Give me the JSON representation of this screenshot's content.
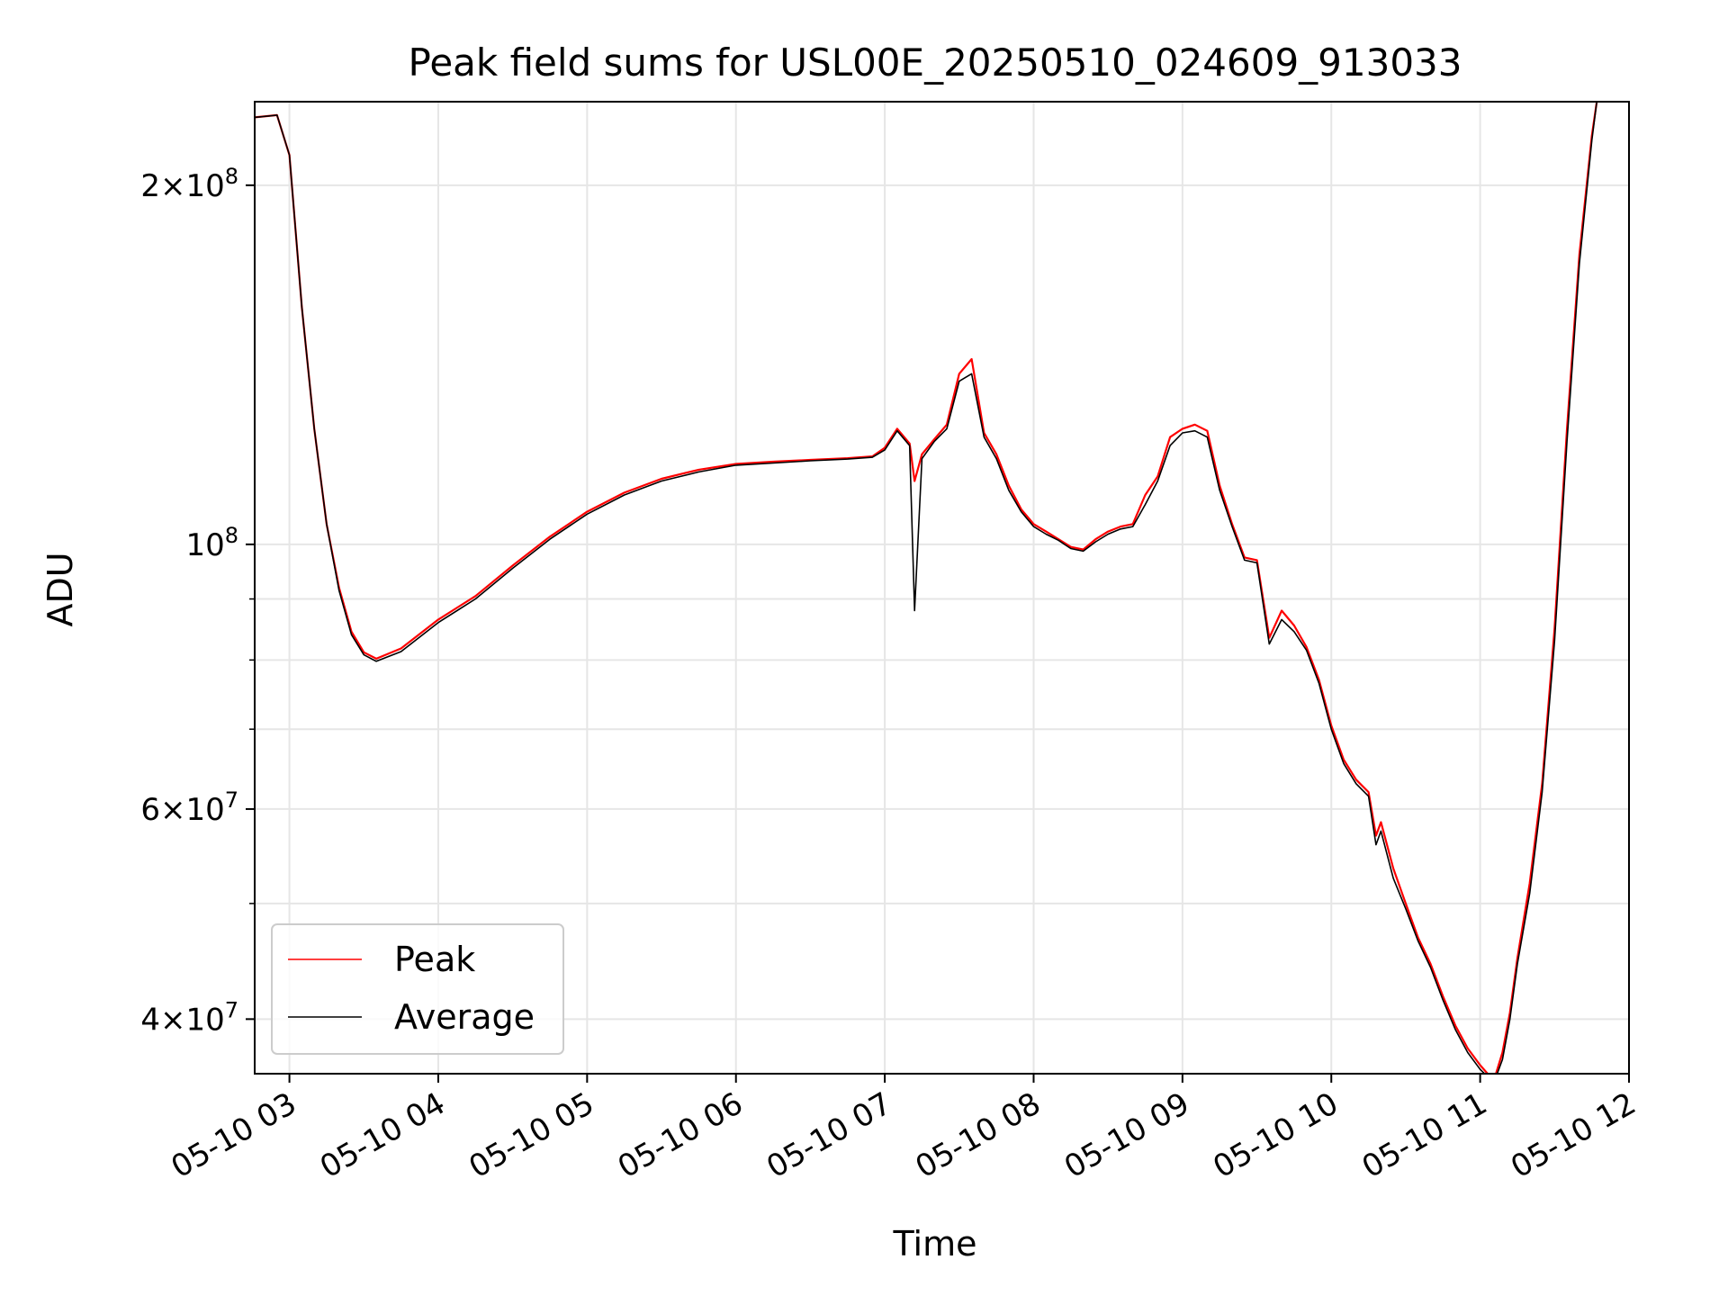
{
  "chart_data": {
    "type": "line",
    "title": "Peak field sums for USL00E_20250510_024609_913033",
    "xlabel": "Time",
    "ylabel": "ADU",
    "yscale": "log",
    "xlim": [
      "05-10 02:46",
      "05-10 12:00"
    ],
    "ylim": [
      36000000,
      235000000
    ],
    "grid": true,
    "legend_position": "lower-left",
    "x_ticks": [
      "05-10 03",
      "05-10 04",
      "05-10 05",
      "05-10 06",
      "05-10 07",
      "05-10 08",
      "05-10 09",
      "05-10 10",
      "05-10 11",
      "05-10 12"
    ],
    "y_major_ticks": [
      {
        "value": 40000000,
        "base": "4",
        "exp": "7"
      },
      {
        "value": 60000000,
        "base": "6",
        "exp": "7"
      },
      {
        "value": 100000000,
        "base": "",
        "exp": "8"
      },
      {
        "value": 200000000,
        "base": "2",
        "exp": "8"
      }
    ],
    "y_minor_ticks": [
      50000000,
      70000000,
      80000000,
      90000000
    ],
    "series": [
      {
        "name": "Peak",
        "color": "#ff0000",
        "x": [
          "05-10 02:46",
          "05-10 02:55",
          "05-10 03:00",
          "05-10 03:05",
          "05-10 03:10",
          "05-10 03:15",
          "05-10 03:20",
          "05-10 03:25",
          "05-10 03:30",
          "05-10 03:35",
          "05-10 03:45",
          "05-10 04:00",
          "05-10 04:15",
          "05-10 04:30",
          "05-10 04:45",
          "05-10 05:00",
          "05-10 05:15",
          "05-10 05:30",
          "05-10 05:45",
          "05-10 06:00",
          "05-10 06:15",
          "05-10 06:30",
          "05-10 06:45",
          "05-10 06:55",
          "05-10 07:00",
          "05-10 07:05",
          "05-10 07:10",
          "05-10 07:12",
          "05-10 07:15",
          "05-10 07:20",
          "05-10 07:25",
          "05-10 07:30",
          "05-10 07:35",
          "05-10 07:40",
          "05-10 07:45",
          "05-10 07:50",
          "05-10 07:55",
          "05-10 08:00",
          "05-10 08:05",
          "05-10 08:10",
          "05-10 08:15",
          "05-10 08:20",
          "05-10 08:25",
          "05-10 08:30",
          "05-10 08:35",
          "05-10 08:40",
          "05-10 08:45",
          "05-10 08:50",
          "05-10 08:55",
          "05-10 09:00",
          "05-10 09:05",
          "05-10 09:10",
          "05-10 09:15",
          "05-10 09:20",
          "05-10 09:25",
          "05-10 09:30",
          "05-10 09:35",
          "05-10 09:40",
          "05-10 09:45",
          "05-10 09:50",
          "05-10 09:55",
          "05-10 10:00",
          "05-10 10:05",
          "05-10 10:10",
          "05-10 10:15",
          "05-10 10:18",
          "05-10 10:20",
          "05-10 10:25",
          "05-10 10:30",
          "05-10 10:35",
          "05-10 10:40",
          "05-10 10:45",
          "05-10 10:50",
          "05-10 10:55",
          "05-10 11:00",
          "05-10 11:03",
          "05-10 11:06",
          "05-10 11:09",
          "05-10 11:12",
          "05-10 11:15",
          "05-10 11:20",
          "05-10 11:25",
          "05-10 11:30",
          "05-10 11:35",
          "05-10 11:40",
          "05-10 11:45",
          "05-10 11:47"
        ],
        "values": [
          228000000,
          229000000,
          212000000,
          158000000,
          125000000,
          104000000,
          92000000,
          84500000,
          81200000,
          80200000,
          81800000,
          86500000,
          90500000,
          96000000,
          101500000,
          106500000,
          110500000,
          113500000,
          115500000,
          116800000,
          117300000,
          117700000,
          118100000,
          118500000,
          120500000,
          125000000,
          121500000,
          113000000,
          119000000,
          122500000,
          126000000,
          139000000,
          143000000,
          124000000,
          119000000,
          112000000,
          107000000,
          104000000,
          102500000,
          101000000,
          99500000,
          99000000,
          101000000,
          102500000,
          103500000,
          104000000,
          110000000,
          114000000,
          123000000,
          125000000,
          126000000,
          124500000,
          112000000,
          104000000,
          97500000,
          97000000,
          83500000,
          88000000,
          85500000,
          82000000,
          77000000,
          70500000,
          66000000,
          63500000,
          62000000,
          57000000,
          58500000,
          53500000,
          50000000,
          46800000,
          44500000,
          41800000,
          39500000,
          37800000,
          36600000,
          36000000,
          35800000,
          37500000,
          40500000,
          45000000,
          52000000,
          63000000,
          85000000,
          125000000,
          175000000,
          220000000,
          235000000
        ]
      },
      {
        "name": "Average",
        "color": "#000000",
        "x": [
          "05-10 02:46",
          "05-10 02:55",
          "05-10 03:00",
          "05-10 03:05",
          "05-10 03:10",
          "05-10 03:15",
          "05-10 03:20",
          "05-10 03:25",
          "05-10 03:30",
          "05-10 03:35",
          "05-10 03:45",
          "05-10 04:00",
          "05-10 04:15",
          "05-10 04:30",
          "05-10 04:45",
          "05-10 05:00",
          "05-10 05:15",
          "05-10 05:30",
          "05-10 05:45",
          "05-10 06:00",
          "05-10 06:15",
          "05-10 06:30",
          "05-10 06:45",
          "05-10 06:55",
          "05-10 07:00",
          "05-10 07:05",
          "05-10 07:10",
          "05-10 07:12",
          "05-10 07:15",
          "05-10 07:20",
          "05-10 07:25",
          "05-10 07:30",
          "05-10 07:35",
          "05-10 07:40",
          "05-10 07:45",
          "05-10 07:50",
          "05-10 07:55",
          "05-10 08:00",
          "05-10 08:05",
          "05-10 08:10",
          "05-10 08:15",
          "05-10 08:20",
          "05-10 08:25",
          "05-10 08:30",
          "05-10 08:35",
          "05-10 08:40",
          "05-10 08:45",
          "05-10 08:50",
          "05-10 08:55",
          "05-10 09:00",
          "05-10 09:05",
          "05-10 09:10",
          "05-10 09:15",
          "05-10 09:20",
          "05-10 09:25",
          "05-10 09:30",
          "05-10 09:35",
          "05-10 09:40",
          "05-10 09:45",
          "05-10 09:50",
          "05-10 09:55",
          "05-10 10:00",
          "05-10 10:05",
          "05-10 10:10",
          "05-10 10:15",
          "05-10 10:18",
          "05-10 10:20",
          "05-10 10:25",
          "05-10 10:30",
          "05-10 10:35",
          "05-10 10:40",
          "05-10 10:45",
          "05-10 10:50",
          "05-10 10:55",
          "05-10 11:00",
          "05-10 11:03",
          "05-10 11:06",
          "05-10 11:09",
          "05-10 11:12",
          "05-10 11:15",
          "05-10 11:20",
          "05-10 11:25",
          "05-10 11:30",
          "05-10 11:35",
          "05-10 11:40",
          "05-10 11:45",
          "05-10 11:47"
        ],
        "values": [
          228000000,
          229000000,
          212000000,
          158000000,
          125000000,
          104000000,
          91500000,
          84000000,
          80800000,
          79800000,
          81300000,
          86000000,
          90000000,
          95500000,
          101000000,
          106000000,
          110000000,
          113000000,
          115000000,
          116500000,
          117000000,
          117500000,
          117900000,
          118300000,
          120000000,
          124500000,
          121000000,
          88000000,
          118000000,
          122000000,
          125000000,
          137000000,
          139000000,
          123000000,
          118000000,
          111000000,
          106500000,
          103500000,
          102000000,
          100800000,
          99200000,
          98700000,
          100500000,
          102000000,
          103000000,
          103500000,
          108000000,
          113000000,
          121000000,
          124000000,
          124500000,
          123000000,
          111000000,
          103500000,
          97000000,
          96500000,
          82500000,
          86500000,
          84500000,
          81500000,
          76500000,
          70000000,
          65500000,
          63000000,
          61500000,
          56000000,
          57500000,
          52500000,
          49500000,
          46500000,
          44200000,
          41500000,
          39200000,
          37500000,
          36300000,
          35800000,
          35600000,
          37000000,
          40000000,
          44500000,
          51000000,
          62000000,
          83000000,
          122000000,
          172000000,
          218000000,
          235000000
        ]
      }
    ]
  }
}
